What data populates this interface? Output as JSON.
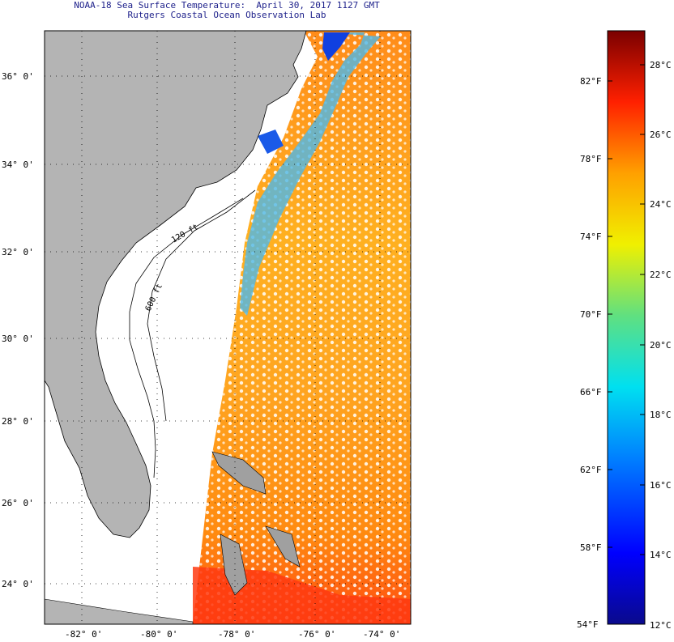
{
  "header": {
    "title": "NOAA-18 Sea Surface Temperature:  April 30, 2017 1127 GMT",
    "subtitle": "Rutgers Coastal Ocean Observation Lab"
  },
  "map": {
    "lat_labels": [
      "36° 0'",
      "34° 0'",
      "32° 0'",
      "30° 0'",
      "28° 0'",
      "26° 0'",
      "24° 0'"
    ],
    "lon_labels": [
      "-82° 0'",
      "-80° 0'",
      "-78° 0'",
      "-76° 0'",
      "-74° 0'"
    ],
    "isobath_labels": [
      "120 ft",
      "600 ft"
    ],
    "land_color": "#b4b4b4"
  },
  "colorbar": {
    "fahrenheit": [
      "82°F",
      "78°F",
      "74°F",
      "70°F",
      "66°F",
      "62°F",
      "58°F",
      "54°F"
    ],
    "celsius": [
      "28°C",
      "26°C",
      "24°C",
      "22°C",
      "20°C",
      "18°C",
      "16°C",
      "14°C",
      "12°C"
    ]
  }
}
